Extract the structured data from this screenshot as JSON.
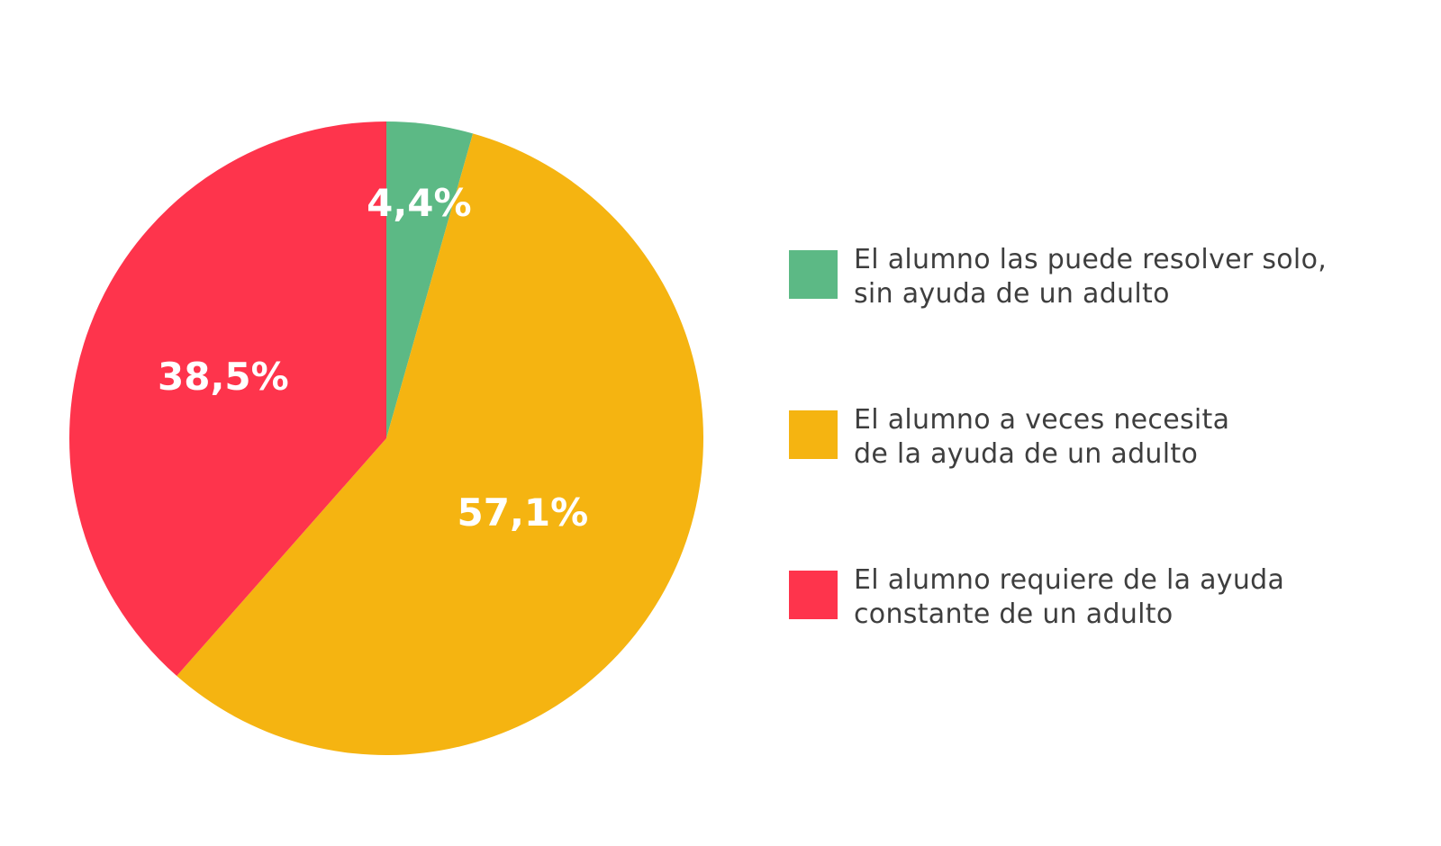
{
  "chart_data": {
    "type": "pie",
    "slices": [
      {
        "label_lines": [
          "El alumno las puede resolver solo,",
          "sin ayuda de un adulto"
        ],
        "value": 4.4,
        "display": "4,4%",
        "color": "#5cb985"
      },
      {
        "label_lines": [
          "El alumno a veces necesita",
          "de la ayuda de un adulto"
        ],
        "value": 57.1,
        "display": "57,1%",
        "color": "#f5b411"
      },
      {
        "label_lines": [
          "El alumno requiere de la ayuda",
          "constante de un adulto"
        ],
        "value": 38.5,
        "display": "38,5%",
        "color": "#fe344c"
      }
    ],
    "start_angle": "top",
    "direction": "clockwise",
    "legend_position": "right"
  }
}
